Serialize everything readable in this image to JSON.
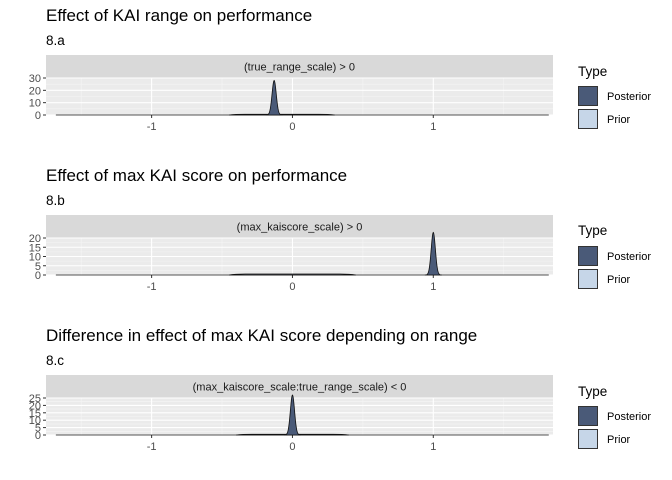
{
  "legend": {
    "title": "Type",
    "items": [
      {
        "label": "Posterior",
        "color": "#4a5a78"
      },
      {
        "label": "Prior",
        "color": "#c6d6e8"
      }
    ]
  },
  "chart_data": [
    {
      "type": "area",
      "title": "Effect of KAI range on performance",
      "subtitle": "8.a",
      "facet_label": "(true_range_scale) > 0",
      "xlim": [
        -1.75,
        1.85
      ],
      "xticks": [
        -1,
        0,
        1
      ],
      "ylim": [
        0,
        30
      ],
      "yticks": [
        0,
        10,
        20,
        30
      ],
      "series": [
        {
          "name": "Posterior",
          "peak_x": -0.13,
          "peak_y": 28,
          "sd": 0.015
        },
        {
          "name": "Prior",
          "x_from": -0.45,
          "x_to": 0.3,
          "height": 0.6
        }
      ]
    },
    {
      "type": "area",
      "title": "Effect of max KAI score on performance",
      "subtitle": "8.b",
      "facet_label": "(max_kaiscore_scale) > 0",
      "xlim": [
        -1.75,
        1.85
      ],
      "xticks": [
        -1,
        0,
        1
      ],
      "ylim": [
        0,
        20
      ],
      "yticks": [
        0,
        5,
        10,
        15,
        20
      ],
      "series": [
        {
          "name": "Posterior",
          "peak_x": 1.0,
          "peak_y": 23,
          "sd": 0.015
        },
        {
          "name": "Prior",
          "x_from": -0.45,
          "x_to": 0.45,
          "height": 0.5
        }
      ]
    },
    {
      "type": "area",
      "title": "Difference in effect of max KAI score depending on range",
      "subtitle": "8.c",
      "facet_label": "(max_kaiscore_scale:true_range_scale) < 0",
      "xlim": [
        -1.75,
        1.85
      ],
      "xticks": [
        -1,
        0,
        1
      ],
      "ylim": [
        0,
        25
      ],
      "yticks": [
        0,
        5,
        10,
        15,
        20,
        25
      ],
      "series": [
        {
          "name": "Posterior",
          "peak_x": 0.0,
          "peak_y": 27,
          "sd": 0.015
        },
        {
          "name": "Prior",
          "x_from": -0.4,
          "x_to": 0.4,
          "height": 0.5
        }
      ]
    }
  ]
}
